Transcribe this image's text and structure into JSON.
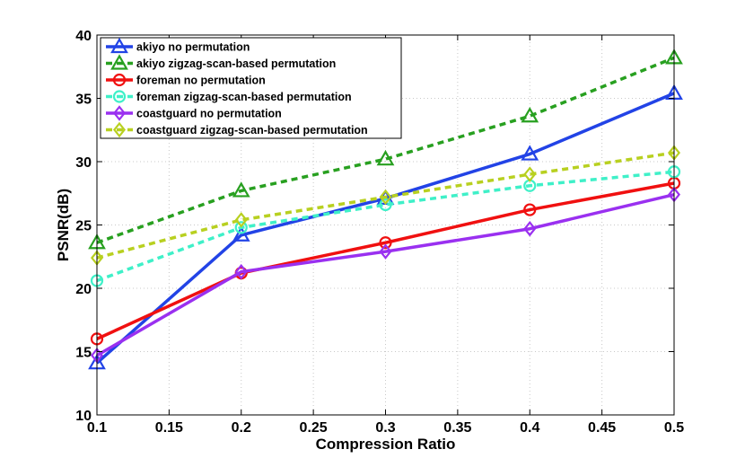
{
  "chart_data": {
    "type": "line",
    "title": "",
    "xlabel": "Compression Ratio",
    "ylabel": "PSNR(dB)",
    "xlim": [
      0.1,
      0.5
    ],
    "ylim": [
      10,
      40
    ],
    "xticks": [
      "0.1",
      "0.15",
      "0.2",
      "0.25",
      "0.3",
      "0.35",
      "0.4",
      "0.45",
      "0.5"
    ],
    "yticks": [
      "10",
      "15",
      "20",
      "25",
      "30",
      "35",
      "40"
    ],
    "legend_position": "top-left",
    "x": [
      0.1,
      0.2,
      0.3,
      0.4,
      0.5
    ],
    "series": [
      {
        "name": "akiyo no permutation",
        "values": [
          14.1,
          24.2,
          27.1,
          30.6,
          35.4
        ],
        "color": "#2243e6",
        "dash": "solid",
        "marker": "triangle"
      },
      {
        "name": "akiyo zigzag-scan-based permutation",
        "values": [
          23.6,
          27.7,
          30.2,
          33.6,
          38.2
        ],
        "color": "#28a020",
        "dash": "dashed",
        "marker": "triangle"
      },
      {
        "name": "foreman no permutation",
        "values": [
          16.0,
          21.2,
          23.6,
          26.2,
          28.3
        ],
        "color": "#f01010",
        "dash": "solid",
        "marker": "circle"
      },
      {
        "name": "foreman zigzag-scan-based permutation",
        "values": [
          20.6,
          24.8,
          26.6,
          28.1,
          29.2
        ],
        "color": "#3ff0c8",
        "dash": "dashed",
        "marker": "circle"
      },
      {
        "name": "coastguard no permutation",
        "values": [
          14.7,
          21.3,
          22.9,
          24.7,
          27.4
        ],
        "color": "#9a30f0",
        "dash": "solid",
        "marker": "diamond"
      },
      {
        "name": "coastguard zigzag-scan-based permutation",
        "values": [
          22.4,
          25.4,
          27.2,
          29.0,
          30.7
        ],
        "color": "#b8d020",
        "dash": "dashed",
        "marker": "diamond"
      }
    ]
  }
}
